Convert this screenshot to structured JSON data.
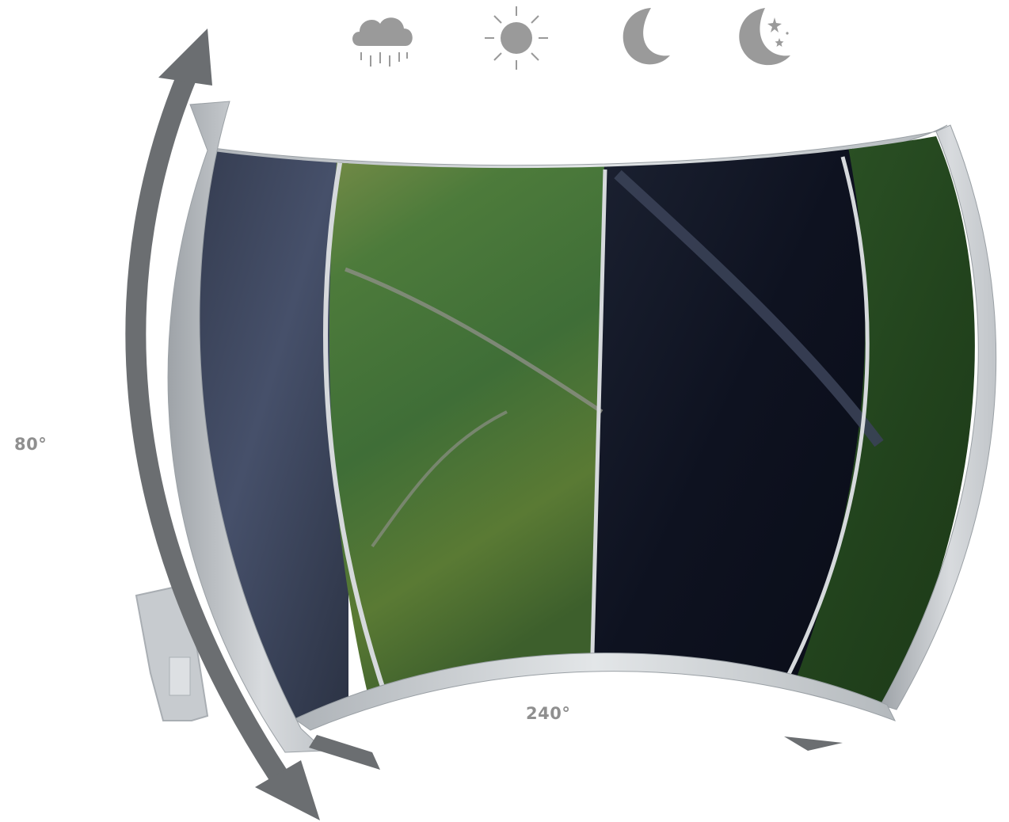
{
  "icons": [
    {
      "name": "rain-cloud-icon",
      "color": "#9a9a9a"
    },
    {
      "name": "sun-icon",
      "color": "#9a9a9a"
    },
    {
      "name": "crescent-moon-icon",
      "color": "#9a9a9a"
    },
    {
      "name": "moon-stars-icon",
      "color": "#9a9a9a"
    }
  ],
  "labels": {
    "vertical_fov": "80°",
    "horizontal_fov": "240°"
  },
  "colors": {
    "frame": "#c9cdd1",
    "frame_dark": "#8d9296",
    "arrow": "#6b6e71",
    "panel_dusk": "#3b4458",
    "panel_day": "#4f7a3e",
    "panel_night": "#0f1424",
    "panel_nv": "#24461f"
  }
}
